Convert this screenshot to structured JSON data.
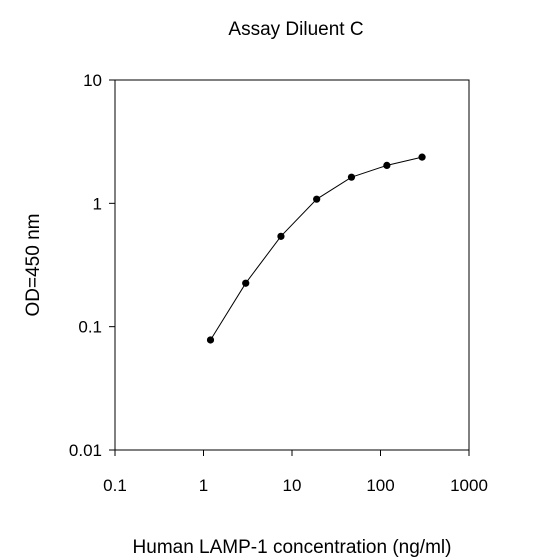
{
  "chart_data": {
    "type": "line",
    "title": "Assay Diluent C",
    "xlabel": "Human LAMP-1 concentration (ng/ml)",
    "ylabel": "OD=450 nm",
    "x_scale": "log",
    "y_scale": "log",
    "xlim": [
      0.1,
      1000
    ],
    "ylim": [
      0.01,
      10
    ],
    "x_ticks": [
      "0.1",
      "1",
      "10",
      "100",
      "1000"
    ],
    "y_ticks": [
      "0.01",
      "0.1",
      "1",
      "10"
    ],
    "grid": false,
    "legend": "none",
    "series": [
      {
        "x": [
          1.2,
          3.0,
          7.5,
          19,
          47,
          118,
          295
        ],
        "y": [
          0.078,
          0.225,
          0.54,
          1.08,
          1.63,
          2.03,
          2.37
        ]
      }
    ]
  }
}
